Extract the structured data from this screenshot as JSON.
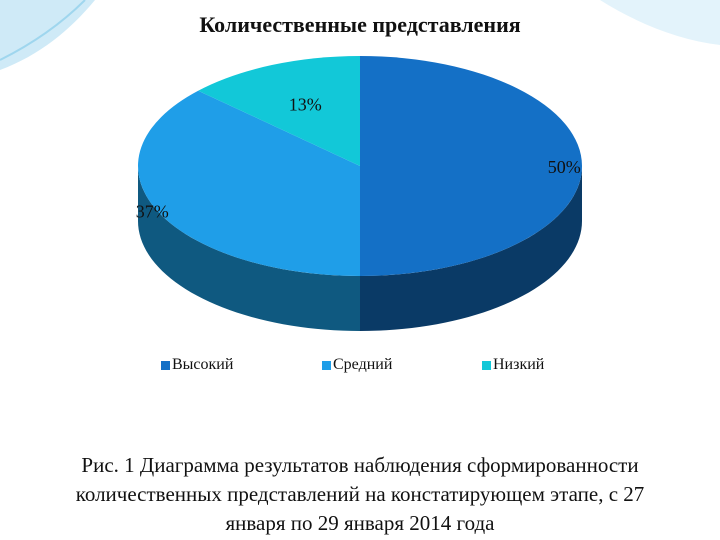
{
  "title": "Количественные представления",
  "colors": {
    "high": "#1470c6",
    "high_side": "#0a3a66",
    "medium": "#1f9ee8",
    "medium_side": "#0f5980",
    "low": "#12c8d8",
    "low_side": "#0a7884",
    "background": "#ffffff",
    "wave": "#9fd6ee"
  },
  "chart_data": {
    "type": "pie",
    "title": "Количественные представления",
    "categories": [
      "Высокий",
      "Средний",
      "Низкий"
    ],
    "values": [
      50,
      37,
      13
    ],
    "labels": [
      "50%",
      "37%",
      "13%"
    ],
    "legend_position": "bottom",
    "style": "3d"
  },
  "legend": {
    "items": [
      {
        "label": "Высокий",
        "color": "#1470c6"
      },
      {
        "label": "Средний",
        "color": "#1f9ee8"
      },
      {
        "label": "Низкий",
        "color": "#12c8d8"
      }
    ]
  },
  "caption": {
    "line1": "Рис. 1  Диаграмма результатов наблюдения сформированности",
    "line2": "количественных представлений на констатирующем этапе, с 27",
    "line3": "января по 29 января 2014 года"
  }
}
